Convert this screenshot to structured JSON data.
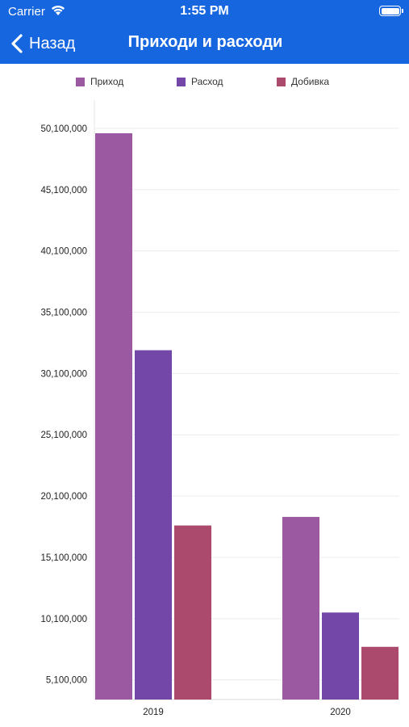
{
  "status": {
    "carrier": "Carrier",
    "time": "1:55 PM"
  },
  "nav": {
    "back_label": "Назад",
    "title": "Приходи и расходи"
  },
  "colors": {
    "nav_background": "#1666e0",
    "income": "#9b59a2",
    "expense": "#7347a8",
    "profit": "#ab4a6c"
  },
  "chart_data": {
    "type": "bar",
    "categories": [
      "2019",
      "2020"
    ],
    "series": [
      {
        "name": "Приход",
        "values": [
          49700000,
          18400000
        ],
        "color": "#9b59a2"
      },
      {
        "name": "Расход",
        "values": [
          32000000,
          10600000
        ],
        "color": "#7347a8"
      },
      {
        "name": "Добивка",
        "values": [
          17700000,
          7800000
        ],
        "color": "#ab4a6c"
      }
    ],
    "yticks": [
      5100000,
      10100000,
      15100000,
      20100000,
      25100000,
      30100000,
      35100000,
      40100000,
      45100000,
      50100000
    ],
    "ytick_labels": [
      "5,100,000",
      "10,100,000",
      "15,100,000",
      "20,100,000",
      "25,100,000",
      "30,100,000",
      "35,100,000",
      "40,100,000",
      "45,100,000",
      "50,100,000"
    ],
    "ylim": [
      3500000,
      52400000
    ],
    "grid": true,
    "legend_position": "top",
    "xlabel": "",
    "ylabel": ""
  }
}
